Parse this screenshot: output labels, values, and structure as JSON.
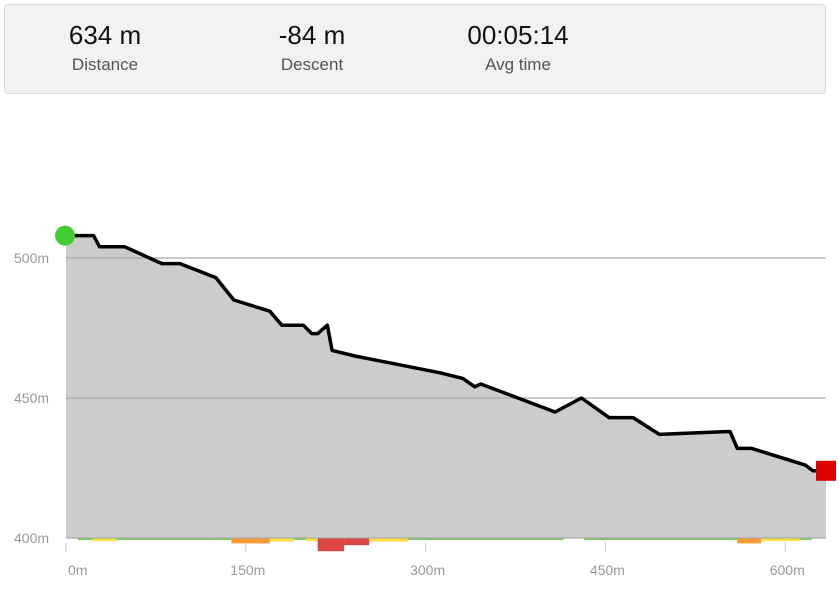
{
  "stats": [
    {
      "value": "634 m",
      "label": "Distance"
    },
    {
      "value": "-84 m",
      "label": "Descent"
    },
    {
      "value": "00:05:14",
      "label": "Avg time"
    }
  ],
  "chart_data": {
    "type": "area",
    "title": "",
    "xlabel": "",
    "ylabel": "",
    "xlim": [
      0,
      634
    ],
    "ylim": [
      400,
      510
    ],
    "x_ticks": [
      0,
      150,
      300,
      450,
      600
    ],
    "x_tick_labels": [
      "0m",
      "150m",
      "300m",
      "450m",
      "600m"
    ],
    "y_ticks": [
      400,
      450,
      500
    ],
    "y_tick_labels": [
      "400m",
      "450m",
      "500m"
    ],
    "grid": true,
    "series": [
      {
        "x": [
          0,
          23,
          28,
          49,
          80,
          95,
          125,
          140,
          170,
          180,
          198,
          205,
          210,
          218,
          222,
          241,
          312,
          331,
          341,
          346,
          408,
          430,
          453,
          473,
          495,
          550,
          554,
          560,
          572,
          617,
          623,
          634
        ],
        "y": [
          508,
          508,
          504,
          504,
          498,
          498,
          493,
          485,
          481,
          476,
          476,
          473,
          473,
          476,
          467,
          465,
          459,
          457,
          454,
          455,
          445,
          450,
          443,
          443,
          437,
          438,
          438,
          432,
          432,
          426,
          424,
          424
        ]
      }
    ],
    "start_marker_color": "#44cc33",
    "end_marker_color": "#dd0000",
    "slope_bands": [
      {
        "x": [
          10,
          22
        ],
        "grade": -1,
        "color": "#77cc55"
      },
      {
        "x": [
          22,
          42
        ],
        "grade": -5,
        "color": "#ffdd44"
      },
      {
        "x": [
          42,
          75
        ],
        "grade": -1,
        "color": "#77cc55"
      },
      {
        "x": [
          75,
          95
        ],
        "grade": -1,
        "color": "#77cc55"
      },
      {
        "x": [
          95,
          115
        ],
        "grade": -1,
        "color": "#77cc55"
      },
      {
        "x": [
          115,
          138
        ],
        "grade": -2,
        "color": "#77cc55"
      },
      {
        "x": [
          138,
          170
        ],
        "grade": -9,
        "color": "#ff9933"
      },
      {
        "x": [
          170,
          190
        ],
        "grade": -6,
        "color": "#ffdd44"
      },
      {
        "x": [
          190,
          200
        ],
        "grade": -2,
        "color": "#77cc55"
      },
      {
        "x": [
          200,
          210
        ],
        "grade": -5,
        "color": "#ffdd44"
      },
      {
        "x": [
          210,
          232
        ],
        "grade": -22,
        "color": "#dd4444"
      },
      {
        "x": [
          232,
          253
        ],
        "grade": -12,
        "color": "#dd4444"
      },
      {
        "x": [
          253,
          285
        ],
        "grade": -6,
        "color": "#ffdd44"
      },
      {
        "x": [
          285,
          310
        ],
        "grade": -1,
        "color": "#77cc55"
      },
      {
        "x": [
          310,
          345
        ],
        "grade": -2,
        "color": "#77cc55"
      },
      {
        "x": [
          345,
          375
        ],
        "grade": -1,
        "color": "#77cc55"
      },
      {
        "x": [
          375,
          415
        ],
        "grade": -1,
        "color": "#77cc55"
      },
      {
        "x": [
          432,
          460
        ],
        "grade": -2,
        "color": "#77cc55"
      },
      {
        "x": [
          460,
          495
        ],
        "grade": -1,
        "color": "#77cc55"
      },
      {
        "x": [
          495,
          550
        ],
        "grade": -2,
        "color": "#77cc55"
      },
      {
        "x": [
          550,
          560
        ],
        "grade": -3,
        "color": "#77cc55"
      },
      {
        "x": [
          560,
          580
        ],
        "grade": -9,
        "color": "#ff9933"
      },
      {
        "x": [
          580,
          612
        ],
        "grade": -5,
        "color": "#ffdd44"
      },
      {
        "x": [
          612,
          622
        ],
        "grade": -3,
        "color": "#77cc55"
      }
    ]
  }
}
